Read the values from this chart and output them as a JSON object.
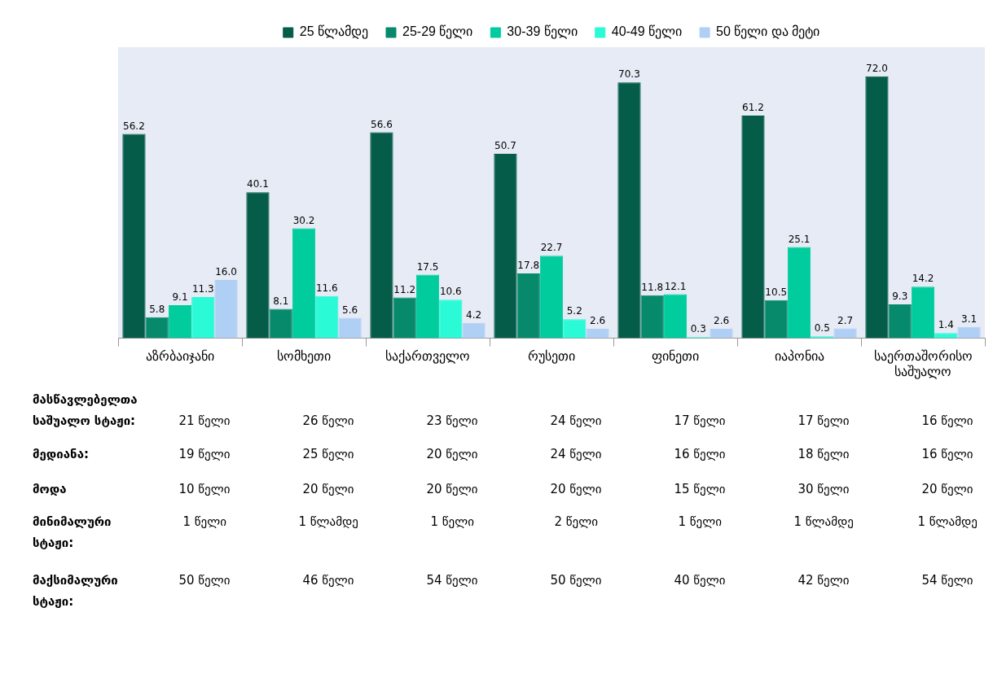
{
  "chart_data": {
    "type": "bar",
    "categories": [
      "აზრბაიჯანი",
      "სომხეთი",
      "საქართველო",
      "რუსეთი",
      "ფინეთი",
      "იაპონია",
      "საერთაშორისო საშუალო"
    ],
    "series": [
      {
        "name": "25 წლამდე",
        "color": "#055c49",
        "values": [
          56.2,
          40.1,
          56.6,
          50.7,
          70.3,
          61.2,
          72.0
        ],
        "value_labels": [
          "56.2",
          "40.1",
          "56.6",
          "50.7",
          "70.3",
          "61.2",
          "72.0"
        ]
      },
      {
        "name": "25-29 წელი",
        "color": "#078a6c",
        "values": [
          5.8,
          8.1,
          11.2,
          17.8,
          11.8,
          10.5,
          9.3
        ],
        "value_labels": [
          "5.8",
          "8.1",
          "11.2",
          "17.8",
          "11.8",
          "10.5",
          "9.3"
        ]
      },
      {
        "name": "30-39 წელი",
        "color": "#00cc9e",
        "values": [
          9.1,
          30.2,
          17.5,
          22.7,
          12.1,
          25.1,
          14.2
        ],
        "value_labels": [
          "9.1",
          "30.2",
          "17.5",
          "22.7",
          "12.1",
          "25.1",
          "14.2"
        ]
      },
      {
        "name": "40-49 წელი",
        "color": "#2afad6",
        "values": [
          11.3,
          11.6,
          10.6,
          5.2,
          0.3,
          0.5,
          1.4
        ],
        "value_labels": [
          "11.3",
          "11.6",
          "10.6",
          "5.2",
          "0.3",
          "0.5",
          "1.4"
        ]
      },
      {
        "name": "50 წელი და მეტი",
        "color": "#b0cff5",
        "values": [
          16.0,
          5.6,
          4.2,
          2.6,
          2.6,
          2.7,
          3.1
        ],
        "value_labels": [
          "16.0",
          "5.6",
          "4.2",
          "2.6",
          "2.6",
          "2.7",
          "3.1"
        ]
      }
    ],
    "ylim": [
      0,
      80
    ],
    "tick_labels": "x",
    "grid": false,
    "legend": "top",
    "annotations": [
      "მასწავლებელთა\nსაშუალო სტაჟი:",
      "21 წელი",
      "26 წელი",
      "23 წელი",
      "24 წელი",
      "17 წელი",
      "17 წელი",
      "16 წელი",
      "მედიანა:",
      "19 წელი",
      "25 წელი",
      "20 წელი",
      "24 წელი",
      "16 წელი",
      "18 წელი",
      "16 წელი",
      "მოდა",
      "10 წელი",
      "20 წელი",
      "20 წელი",
      "20 წელი",
      "15 წელი",
      "30 წელი",
      "20 წელი",
      "მინიმალური\nსტაჟი:",
      "1 წელი",
      "1  წლამდე",
      "1 წელი",
      "2 წელი",
      "1 წელი",
      "1 წლამდე",
      "1 წლამდე",
      "მაქსიმალური\nსტაჟი:",
      "50 წელი",
      "46 წელი",
      "54 წელი",
      "50 წელი",
      "40 წელი",
      "42 წელი",
      "54 წელი"
    ]
  }
}
